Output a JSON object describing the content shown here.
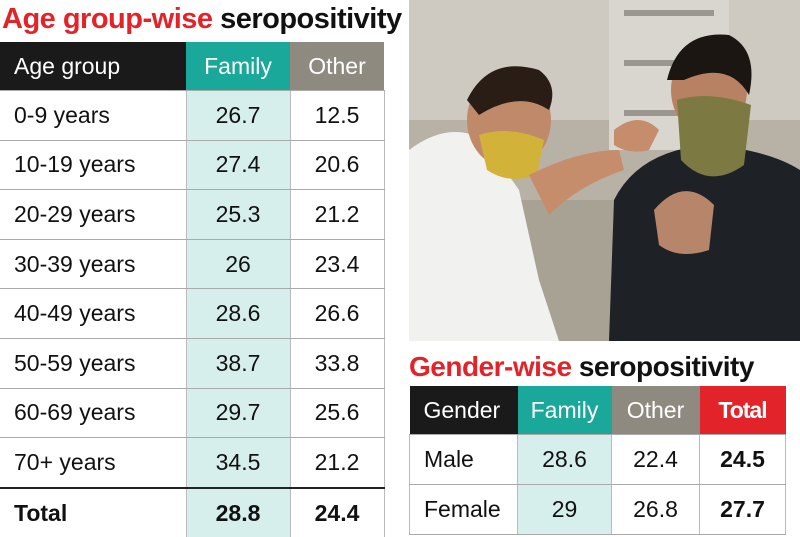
{
  "age_section": {
    "title_accent": "Age group-wise",
    "title_rest": "seropositivity",
    "headers": [
      "Age group",
      "Family",
      "Other"
    ]
  },
  "gender_section": {
    "title_accent": "Gender-wise",
    "title_rest": "seropositivity",
    "headers": [
      "Gender",
      "Family",
      "Other",
      "Total"
    ]
  },
  "chart_data": [
    {
      "type": "table",
      "title": "Age group-wise seropositivity",
      "columns": [
        "Age group",
        "Family",
        "Other"
      ],
      "rows": [
        [
          "0-9 years",
          "26.7",
          "12.5"
        ],
        [
          "10-19 years",
          "27.4",
          "20.6"
        ],
        [
          "20-29 years",
          "25.3",
          "21.2"
        ],
        [
          "30-39 years",
          "26",
          "23.4"
        ],
        [
          "40-49 years",
          "28.6",
          "26.6"
        ],
        [
          "50-59 years",
          "38.7",
          "33.8"
        ],
        [
          "60-69 years",
          "29.7",
          "25.6"
        ],
        [
          "70+ years",
          "34.5",
          "21.2"
        ]
      ],
      "total": [
        "Total",
        "28.8",
        "24.4"
      ]
    },
    {
      "type": "table",
      "title": "Gender-wise seropositivity",
      "columns": [
        "Gender",
        "Family",
        "Other",
        "Total"
      ],
      "rows": [
        [
          "Male",
          "28.6",
          "22.4",
          "24.5"
        ],
        [
          "Female",
          "29",
          "26.8",
          "27.7"
        ]
      ]
    }
  ],
  "colors": {
    "accent_red": "#e3232a",
    "teal": "#1aa89a",
    "gray": "#8e8a80",
    "dark": "#1a1a1a",
    "family_cell": "#d6efed"
  }
}
